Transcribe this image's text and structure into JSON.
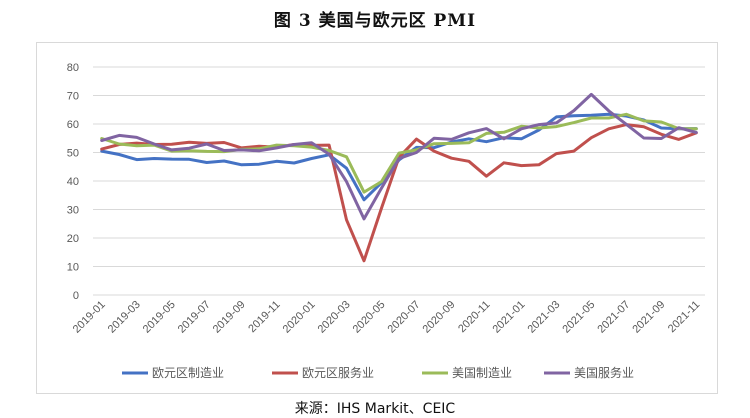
{
  "title": "图 3  美国与欧元区 PMI",
  "source": "来源：IHS Markit、CEIC",
  "chart_data": {
    "type": "line",
    "title": "图 3  美国与欧元区 PMI",
    "xlabel": "",
    "ylabel": "",
    "ylim": [
      0,
      80
    ],
    "yticks": [
      0,
      10,
      20,
      30,
      40,
      50,
      60,
      70,
      80
    ],
    "grid": "horizontal",
    "legend": "bottom",
    "x": [
      "2019-01",
      "2019-02",
      "2019-03",
      "2019-04",
      "2019-05",
      "2019-06",
      "2019-07",
      "2019-08",
      "2019-09",
      "2019-10",
      "2019-11",
      "2019-12",
      "2020-01",
      "2020-02",
      "2020-03",
      "2020-04",
      "2020-05",
      "2020-06",
      "2020-07",
      "2020-08",
      "2020-09",
      "2020-10",
      "2020-11",
      "2020-12",
      "2021-01",
      "2021-02",
      "2021-03",
      "2021-04",
      "2021-05",
      "2021-06",
      "2021-07",
      "2021-08",
      "2021-09",
      "2021-10",
      "2021-11"
    ],
    "xtick_labels": [
      "2019-01",
      "2019-03",
      "2019-05",
      "2019-07",
      "2019-09",
      "2019-11",
      "2020-01",
      "2020-03",
      "2020-05",
      "2020-07",
      "2020-09",
      "2020-11",
      "2021-01",
      "2021-03",
      "2021-05",
      "2021-07",
      "2021-09",
      "2021-11"
    ],
    "series": [
      {
        "name": "欧元区制造业",
        "color": "#4472C4",
        "values": [
          50.5,
          49.3,
          47.5,
          47.9,
          47.7,
          47.6,
          46.5,
          47.0,
          45.7,
          45.9,
          46.9,
          46.3,
          47.9,
          49.2,
          44.5,
          33.4,
          39.4,
          47.4,
          51.8,
          51.7,
          53.7,
          54.8,
          53.8,
          55.2,
          54.8,
          57.9,
          62.5,
          62.9,
          63.1,
          63.4,
          62.8,
          61.4,
          58.6,
          58.3,
          58.4
        ]
      },
      {
        "name": "欧元区服务业",
        "color": "#C0504D",
        "values": [
          51.2,
          52.8,
          53.3,
          52.8,
          52.9,
          53.6,
          53.2,
          53.5,
          51.6,
          52.2,
          51.9,
          52.8,
          52.5,
          52.6,
          26.4,
          12.0,
          30.5,
          48.3,
          54.7,
          50.5,
          48.0,
          46.9,
          41.7,
          46.4,
          45.4,
          45.7,
          49.6,
          50.5,
          55.2,
          58.3,
          59.8,
          59.0,
          56.4,
          54.6,
          56.9
        ]
      },
      {
        "name": "美国制造业",
        "color": "#9BBB59",
        "values": [
          54.9,
          53.0,
          52.4,
          52.6,
          50.5,
          50.6,
          50.4,
          50.3,
          51.1,
          51.3,
          52.6,
          52.4,
          51.9,
          50.7,
          48.5,
          36.1,
          39.8,
          49.8,
          50.9,
          53.1,
          53.2,
          53.4,
          56.7,
          57.1,
          59.2,
          58.6,
          59.1,
          60.5,
          62.1,
          62.1,
          63.4,
          61.1,
          60.7,
          58.4,
          58.3
        ]
      },
      {
        "name": "美国服务业",
        "color": "#8064A2",
        "values": [
          54.2,
          56.0,
          55.3,
          53.0,
          50.9,
          51.5,
          53.0,
          50.7,
          50.9,
          50.6,
          51.6,
          52.8,
          53.4,
          49.4,
          39.8,
          26.7,
          37.5,
          47.9,
          50.0,
          55.0,
          54.6,
          56.9,
          58.4,
          54.8,
          58.3,
          59.8,
          60.4,
          64.7,
          70.4,
          64.6,
          59.9,
          55.1,
          54.9,
          58.7,
          57.0
        ]
      }
    ]
  }
}
